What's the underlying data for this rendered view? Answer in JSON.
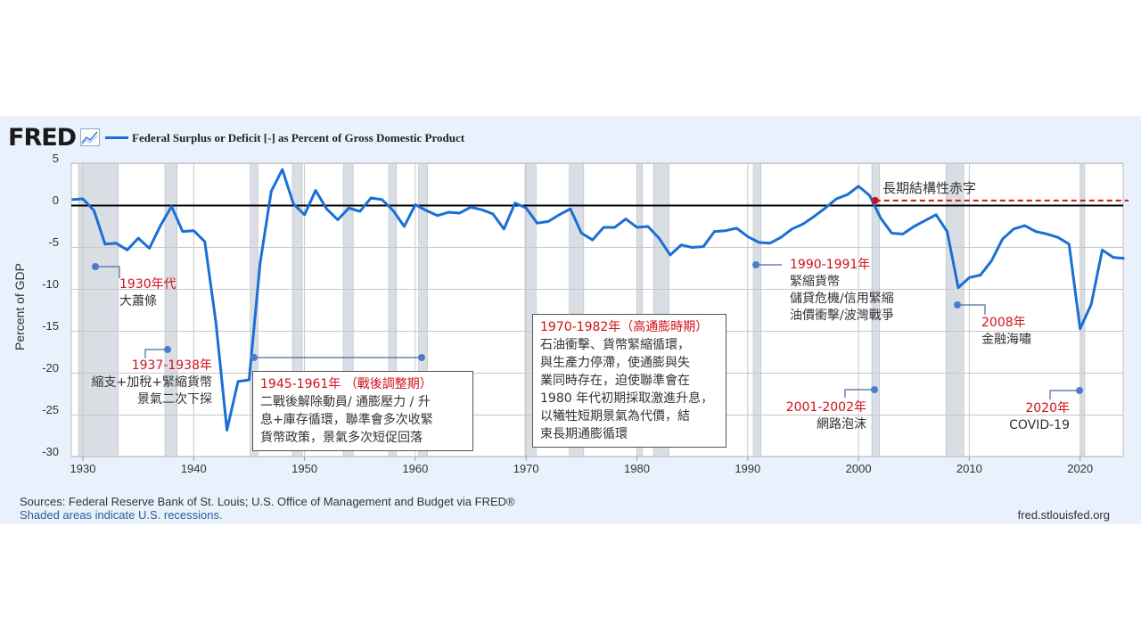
{
  "header": {
    "logo": "FRED",
    "logo_icon": "line-chart-icon",
    "legend_label": "Federal Surplus or Deficit [-] as Percent of Gross Domestic Product"
  },
  "footer": {
    "sources": "Sources: Federal Reserve Bank of St. Louis; U.S. Office of Management and Budget via FRED®",
    "recessions_note": "Shaded areas indicate U.S. recessions.",
    "site": "fred.stlouisfed.org"
  },
  "colors": {
    "series": "#1a6fd6",
    "zero_line": "#000000",
    "recession": "#d9dee5",
    "annotation_red": "#d0101b",
    "dots": "#4a7fc8",
    "panel": "#e9f2fc"
  },
  "chart_data": {
    "type": "line",
    "ylabel": "Percent of GDP",
    "ylim": [
      -30,
      5
    ],
    "xlim": [
      1929,
      2024
    ],
    "yticks": [
      "5",
      "0",
      "-5",
      "-10",
      "-15",
      "-20",
      "-25",
      "-30"
    ],
    "xticks": [
      "1930",
      "1940",
      "1950",
      "1960",
      "1970",
      "1980",
      "1990",
      "2000",
      "2010",
      "2020"
    ],
    "grid": true,
    "legend": "top-left",
    "series": [
      {
        "name": "Federal Surplus or Deficit [-] as Percent of Gross Domestic Product",
        "x": [
          1929,
          1930,
          1931,
          1932,
          1933,
          1934,
          1935,
          1936,
          1937,
          1938,
          1939,
          1940,
          1941,
          1942,
          1943,
          1944,
          1945,
          1946,
          1947,
          1948,
          1949,
          1950,
          1951,
          1952,
          1953,
          1954,
          1955,
          1956,
          1957,
          1958,
          1959,
          1960,
          1961,
          1962,
          1963,
          1964,
          1965,
          1966,
          1967,
          1968,
          1969,
          1970,
          1971,
          1972,
          1973,
          1974,
          1975,
          1976,
          1977,
          1978,
          1979,
          1980,
          1981,
          1982,
          1983,
          1984,
          1985,
          1986,
          1987,
          1988,
          1989,
          1990,
          1991,
          1992,
          1993,
          1994,
          1995,
          1996,
          1997,
          1998,
          1999,
          2000,
          2001,
          2002,
          2003,
          2004,
          2005,
          2006,
          2007,
          2008,
          2009,
          2010,
          2011,
          2012,
          2013,
          2014,
          2015,
          2016,
          2017,
          2018,
          2019,
          2020,
          2021,
          2022,
          2023,
          2024
        ],
        "values": [
          0.7,
          0.8,
          -0.6,
          -4.6,
          -4.5,
          -5.3,
          -3.9,
          -5.1,
          -2.4,
          -0.1,
          -3.1,
          -3.0,
          -4.3,
          -13.9,
          -26.8,
          -21.0,
          -20.8,
          -6.8,
          1.7,
          4.3,
          0.2,
          -1.1,
          1.8,
          -0.4,
          -1.7,
          -0.3,
          -0.7,
          0.9,
          0.7,
          -0.6,
          -2.5,
          0.1,
          -0.6,
          -1.2,
          -0.8,
          -0.9,
          -0.2,
          -0.5,
          -1.0,
          -2.8,
          0.3,
          -0.3,
          -2.1,
          -1.9,
          -1.1,
          -0.4,
          -3.3,
          -4.1,
          -2.6,
          -2.6,
          -1.6,
          -2.6,
          -2.5,
          -3.9,
          -5.9,
          -4.7,
          -5.0,
          -4.9,
          -3.1,
          -3.0,
          -2.7,
          -3.7,
          -4.4,
          -4.5,
          -3.8,
          -2.8,
          -2.2,
          -1.3,
          -0.3,
          0.8,
          1.3,
          2.3,
          1.2,
          -1.5,
          -3.3,
          -3.4,
          -2.5,
          -1.8,
          -1.1,
          -3.1,
          -9.8,
          -8.6,
          -8.3,
          -6.6,
          -4.0,
          -2.8,
          -2.4,
          -3.1,
          -3.4,
          -3.8,
          -4.6,
          -14.7,
          -11.8,
          -5.3,
          -6.2,
          -6.3
        ]
      }
    ],
    "recessions": [
      [
        1929.6,
        1933.2
      ],
      [
        1937.4,
        1938.5
      ],
      [
        1945.1,
        1945.8
      ],
      [
        1948.9,
        1949.8
      ],
      [
        1953.5,
        1954.4
      ],
      [
        1957.6,
        1958.3
      ],
      [
        1960.3,
        1961.1
      ],
      [
        1969.9,
        1970.9
      ],
      [
        1973.9,
        1975.2
      ],
      [
        1980.0,
        1980.5
      ],
      [
        1981.5,
        1982.9
      ],
      [
        1990.5,
        1991.2
      ],
      [
        2001.2,
        2001.9
      ],
      [
        2007.9,
        2009.5
      ],
      [
        2020.1,
        2020.4
      ]
    ],
    "reference_line": 0,
    "structural_deficit_line": {
      "label": "長期結構性赤字",
      "from_year": 2001.5,
      "value": 0.6
    },
    "annotations": [
      {
        "title": "1930年代",
        "lines": [
          "大蕭條"
        ]
      },
      {
        "title": "1937-1938年",
        "lines": [
          "縮支+加稅+緊縮貨幣",
          "景氣二次下探"
        ]
      },
      {
        "title": "1945-1961年 （戰後調整期）",
        "lines": [
          "二戰後解除動員/ 通膨壓力 / 升",
          "息+庫存循環，聯準會多次收緊",
          "貨幣政策，景氣多次短促回落"
        ]
      },
      {
        "title": "1970-1982年（高通膨時期）",
        "lines": [
          "石油衝擊、貨幣緊縮循環，",
          "與生產力停滯，使通膨與失",
          "業同時存在，迫使聯準會在",
          "1980 年代初期採取激進升息，",
          "以犧牲短期景氣為代價，結",
          "束長期通膨循環"
        ]
      },
      {
        "title": "1990-1991年",
        "lines": [
          "緊縮貨幣",
          "儲貸危機/信用緊縮",
          "油價衝擊/波灣戰爭"
        ]
      },
      {
        "title": "2001-2002年",
        "lines": [
          "網路泡沫"
        ]
      },
      {
        "title": "2008年",
        "lines": [
          "金融海嘯"
        ]
      },
      {
        "title": "2020年",
        "lines": [
          "COVID-19"
        ]
      }
    ]
  }
}
